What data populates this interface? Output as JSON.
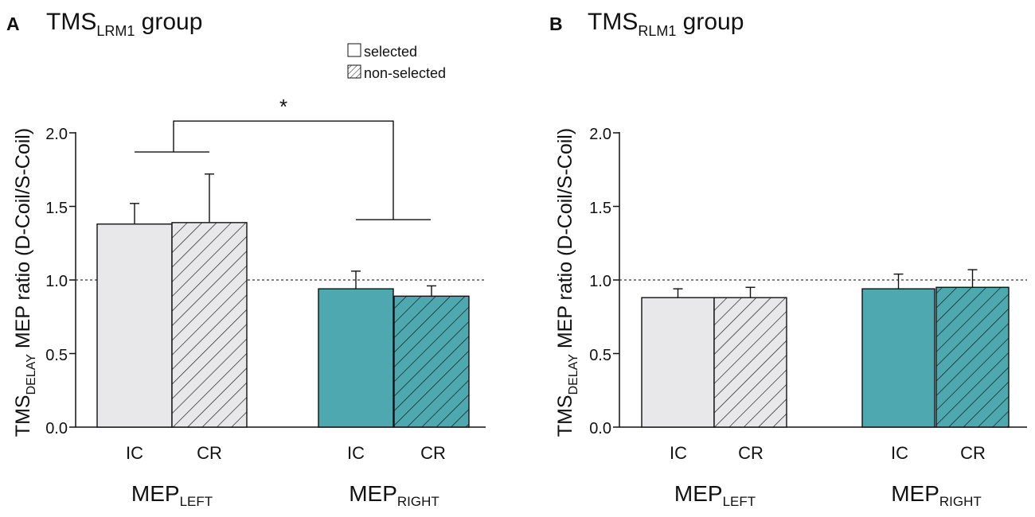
{
  "colors": {
    "selected_left": "#e8e8ea",
    "selected_right": "#4ea8b0",
    "axis": "#111111",
    "refline": "#333333"
  },
  "legend": {
    "selected": "selected",
    "non_selected": "non-selected"
  },
  "significance": {
    "marker": "*"
  },
  "chart_data": [
    {
      "type": "bar",
      "panel": "A",
      "title_main": "TMS",
      "title_sub": "LRM1",
      "title_rest": " group",
      "ylabel_main": "TMS",
      "ylabel_sub": "DELAY",
      "ylabel_rest": " MEP ratio (D-Coil/S-Coil)",
      "ylim": [
        0,
        2.0
      ],
      "yticks": [
        "0.0",
        "0.5",
        "1.0",
        "1.5",
        "2.0"
      ],
      "reference_line": 1.0,
      "groups": [
        {
          "label_main": "MEP",
          "label_sub": "LEFT",
          "bars": [
            {
              "category": "IC",
              "condition": "selected",
              "value": 1.38,
              "error": 0.14
            },
            {
              "category": "CR",
              "condition": "non-selected",
              "value": 1.39,
              "error": 0.33
            }
          ]
        },
        {
          "label_main": "MEP",
          "label_sub": "RIGHT",
          "bars": [
            {
              "category": "IC",
              "condition": "selected",
              "value": 0.94,
              "error": 0.12
            },
            {
              "category": "CR",
              "condition": "non-selected",
              "value": 0.89,
              "error": 0.07
            }
          ]
        }
      ],
      "significance_bracket": {
        "left_y": 1.87,
        "right_y": 1.41,
        "top_y": 2.08
      }
    },
    {
      "type": "bar",
      "panel": "B",
      "title_main": "TMS",
      "title_sub": "RLM1",
      "title_rest": " group",
      "ylabel_main": "TMS",
      "ylabel_sub": "DELAY",
      "ylabel_rest": " MEP ratio (D-Coil/S-Coil)",
      "ylim": [
        0,
        2.0
      ],
      "yticks": [
        "0.0",
        "0.5",
        "1.0",
        "1.5",
        "2.0"
      ],
      "reference_line": 1.0,
      "groups": [
        {
          "label_main": "MEP",
          "label_sub": "LEFT",
          "bars": [
            {
              "category": "IC",
              "condition": "selected",
              "value": 0.88,
              "error": 0.06
            },
            {
              "category": "CR",
              "condition": "non-selected",
              "value": 0.88,
              "error": 0.07
            }
          ]
        },
        {
          "label_main": "MEP",
          "label_sub": "RIGHT",
          "bars": [
            {
              "category": "IC",
              "condition": "selected",
              "value": 0.94,
              "error": 0.1
            },
            {
              "category": "CR",
              "condition": "non-selected",
              "value": 0.95,
              "error": 0.12
            }
          ]
        }
      ]
    }
  ]
}
